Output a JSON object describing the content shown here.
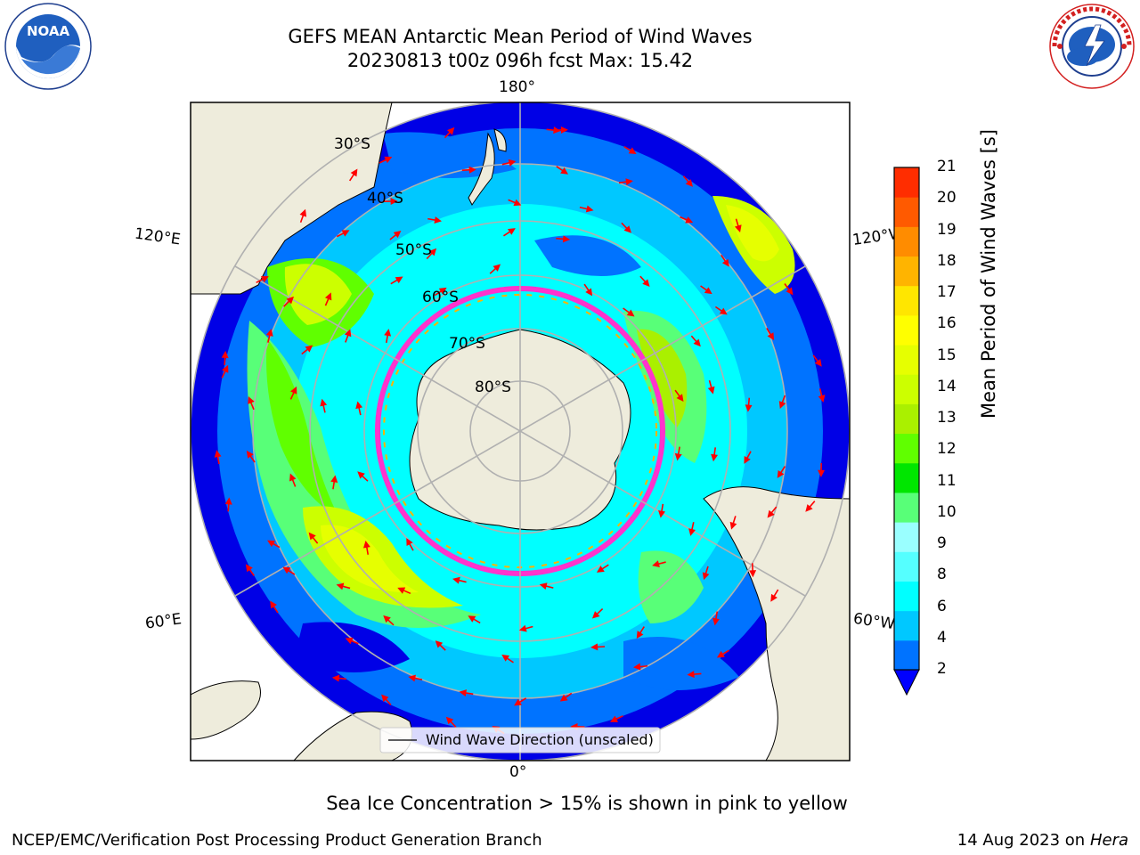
{
  "title_line1": "GEFS MEAN Antarctic Mean Period of Wind Waves",
  "title_line2": "20230813 t00z 096h fcst   Max: 15.42",
  "logo_left": "NOAA",
  "logo_left_ring_text": "NATIONAL OCEANIC AND ATMOSPHERIC ADMINISTRATION · U.S. DEPARTMENT OF COMMERCE",
  "logo_right_ring_text": "NATIONAL WEATHER SERVICE",
  "map": {
    "lon_labels": {
      "top": "180°",
      "bottom": "0°",
      "upper_left": "120°E",
      "lower_left": "60°E",
      "upper_right": "120°W",
      "lower_right": "60°W"
    },
    "lat_labels": [
      "30°S",
      "40°S",
      "50°S",
      "60°S",
      "70°S",
      "80°S"
    ],
    "legend": "Wind Wave Direction (unscaled)",
    "colors": {
      "land": "#eeecdc",
      "ocean_low": "#0000e6",
      "ocean_mid": "#00ffff",
      "ocean_high": "#ccff00",
      "ice": "#ff33cc",
      "arrows": "#ff0000",
      "grid": "#b0b0b0"
    }
  },
  "colorbar": {
    "label": "Mean Period of Wind Waves [s]",
    "ticks": [
      "21",
      "20",
      "19",
      "18",
      "17",
      "16",
      "15",
      "14",
      "13",
      "12",
      "11",
      "10",
      "9",
      "8",
      "6",
      "4",
      "2"
    ],
    "levels": [
      2,
      4,
      6,
      7,
      8,
      9,
      10,
      11,
      12,
      13,
      14,
      15,
      16,
      17,
      18,
      19,
      20,
      21
    ],
    "colors": [
      "#0073ff",
      "#00c8ff",
      "#00ffff",
      "#55ffff",
      "#9affff",
      "#58ff78",
      "#00e600",
      "#60ff00",
      "#aaf000",
      "#ccff00",
      "#e6ff00",
      "#ffff00",
      "#ffe600",
      "#ffb400",
      "#ff8c00",
      "#ff5a00",
      "#ff2d00",
      "#ff0000"
    ],
    "under_color": "#0000ff"
  },
  "note": "Sea Ice Concentration > 15% is shown in pink to yellow",
  "footer_left": "NCEP/EMC/Verification Post Processing Product Generation Branch",
  "footer_date": "14 Aug 2023 on",
  "footer_host": "Hera"
}
